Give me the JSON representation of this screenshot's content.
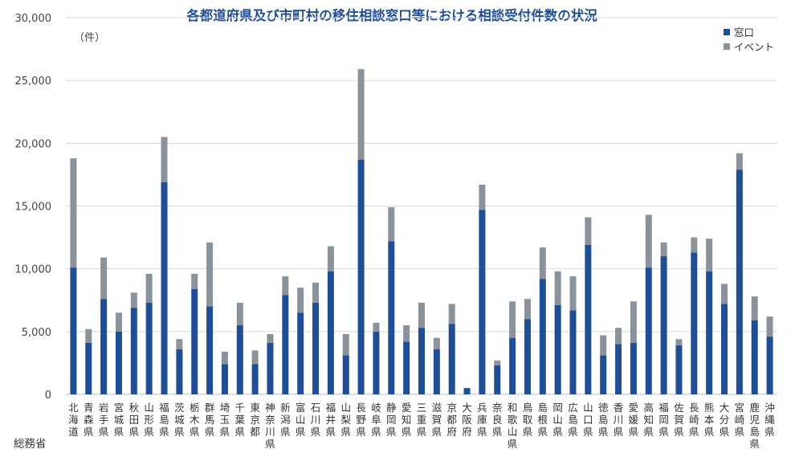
{
  "chart_data": {
    "type": "bar",
    "stacked": true,
    "title": "各都道府県及び市町村の移住相談窓口等における相談受付件数の状況",
    "unit_label": "（件）",
    "source": "総務省",
    "ylim": [
      0,
      30000
    ],
    "yticks": [
      "0",
      "5,000",
      "10,000",
      "15,000",
      "20,000",
      "25,000",
      "30,000"
    ],
    "ytick_values": [
      0,
      5000,
      10000,
      15000,
      20000,
      25000,
      30000
    ],
    "grid": true,
    "legend_position": "top-right",
    "categories": [
      "北海道",
      "青森県",
      "岩手県",
      "宮城県",
      "秋田県",
      "山形県",
      "福島県",
      "茨城県",
      "栃木県",
      "群馬県",
      "埼玉県",
      "千葉県",
      "東京都",
      "神奈川県",
      "新潟県",
      "富山県",
      "石川県",
      "福井県",
      "山梨県",
      "長野県",
      "岐阜県",
      "静岡県",
      "愛知県",
      "三重県",
      "滋賀県",
      "京都府",
      "大阪府",
      "兵庫県",
      "奈良県",
      "和歌山県",
      "鳥取県",
      "島根県",
      "岡山県",
      "広島県",
      "山口県",
      "徳島県",
      "香川県",
      "愛媛県",
      "高知県",
      "福岡県",
      "佐賀県",
      "長崎県",
      "熊本県",
      "大分県",
      "宮崎県",
      "鹿児島県",
      "沖縄県"
    ],
    "series": [
      {
        "name": "窓口",
        "color": "#1f4e99",
        "values": [
          10100,
          4100,
          7600,
          5000,
          6900,
          7300,
          16900,
          3600,
          8400,
          7000,
          2400,
          5500,
          2400,
          4100,
          7900,
          6500,
          7300,
          9800,
          3100,
          18700,
          5000,
          12200,
          4200,
          5300,
          3600,
          5600,
          500,
          14700,
          2300,
          4500,
          6000,
          9200,
          7100,
          6700,
          11900,
          3100,
          4000,
          4100,
          10100,
          11000,
          3900,
          11300,
          9800,
          7200,
          17900,
          5900,
          4600
        ]
      },
      {
        "name": "イベント",
        "color": "#8a939c",
        "values": [
          8700,
          1100,
          3300,
          1500,
          1200,
          2300,
          3600,
          800,
          1200,
          5100,
          1000,
          1800,
          1100,
          700,
          1500,
          2000,
          1600,
          2000,
          1700,
          7200,
          700,
          2700,
          1300,
          2000,
          900,
          1600,
          0,
          2000,
          400,
          2900,
          1600,
          2500,
          2700,
          2700,
          2200,
          1600,
          1300,
          3300,
          4200,
          1100,
          500,
          1200,
          2600,
          1600,
          1300,
          1900,
          1600
        ]
      }
    ]
  },
  "colors": {
    "title": "#1f4e99",
    "grid": "#d9d9d9",
    "axis": "#bfbfbf"
  }
}
